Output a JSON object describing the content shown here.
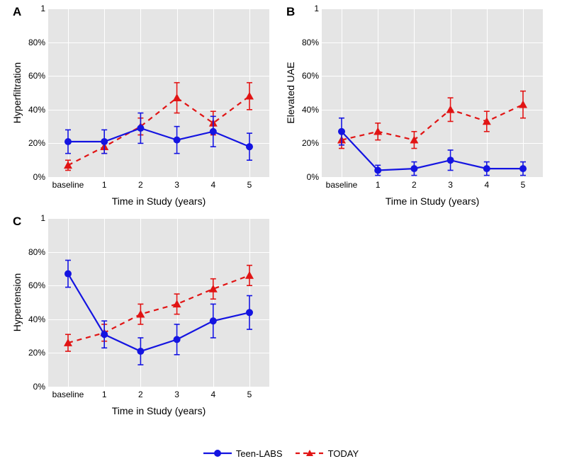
{
  "figure": {
    "panel_bg": "#e5e5e5",
    "gridline_color": "#ffffff",
    "teen_color": "#1414e1",
    "today_color": "#e11414",
    "xlabel": "Time in Study (years)",
    "xcats": [
      "baseline",
      "1",
      "2",
      "3",
      "4",
      "5"
    ],
    "ylim": [
      0,
      1.0
    ],
    "yticks_percent": [
      0,
      20,
      40,
      60,
      80
    ],
    "ytick_1": 1,
    "font_size_label": 14,
    "font_size_tick": 12,
    "marker_size": 5,
    "error_cap_halfwidth": 4,
    "linewidth": 2.2
  },
  "legend": {
    "teen_label": "Teen-LABS",
    "today_label": "TODAY"
  },
  "panels": [
    {
      "tag": "A",
      "ylabel": "Hyperfiltration",
      "teen": {
        "y": [
          0.21,
          0.21,
          0.29,
          0.22,
          0.27,
          0.18
        ],
        "err": [
          0.07,
          0.07,
          0.09,
          0.08,
          0.09,
          0.08
        ]
      },
      "today": {
        "y": [
          0.07,
          0.18,
          0.3,
          0.47,
          0.32,
          0.48
        ],
        "err": [
          0.03,
          0.04,
          0.05,
          0.09,
          0.07,
          0.08
        ]
      }
    },
    {
      "tag": "B",
      "ylabel": "Elevated UAE",
      "teen": {
        "y": [
          0.27,
          0.04,
          0.05,
          0.1,
          0.05,
          0.05
        ],
        "err": [
          0.08,
          0.03,
          0.04,
          0.06,
          0.04,
          0.04
        ]
      },
      "today": {
        "y": [
          0.22,
          0.27,
          0.22,
          0.4,
          0.33,
          0.43
        ],
        "err": [
          0.05,
          0.05,
          0.05,
          0.07,
          0.06,
          0.08
        ]
      }
    },
    {
      "tag": "C",
      "ylabel": "Hypertension",
      "teen": {
        "y": [
          0.67,
          0.31,
          0.21,
          0.28,
          0.39,
          0.44
        ],
        "err": [
          0.08,
          0.08,
          0.08,
          0.09,
          0.1,
          0.1
        ]
      },
      "today": {
        "y": [
          0.26,
          0.32,
          0.43,
          0.49,
          0.58,
          0.66
        ],
        "err": [
          0.05,
          0.05,
          0.06,
          0.06,
          0.06,
          0.06
        ]
      }
    }
  ]
}
